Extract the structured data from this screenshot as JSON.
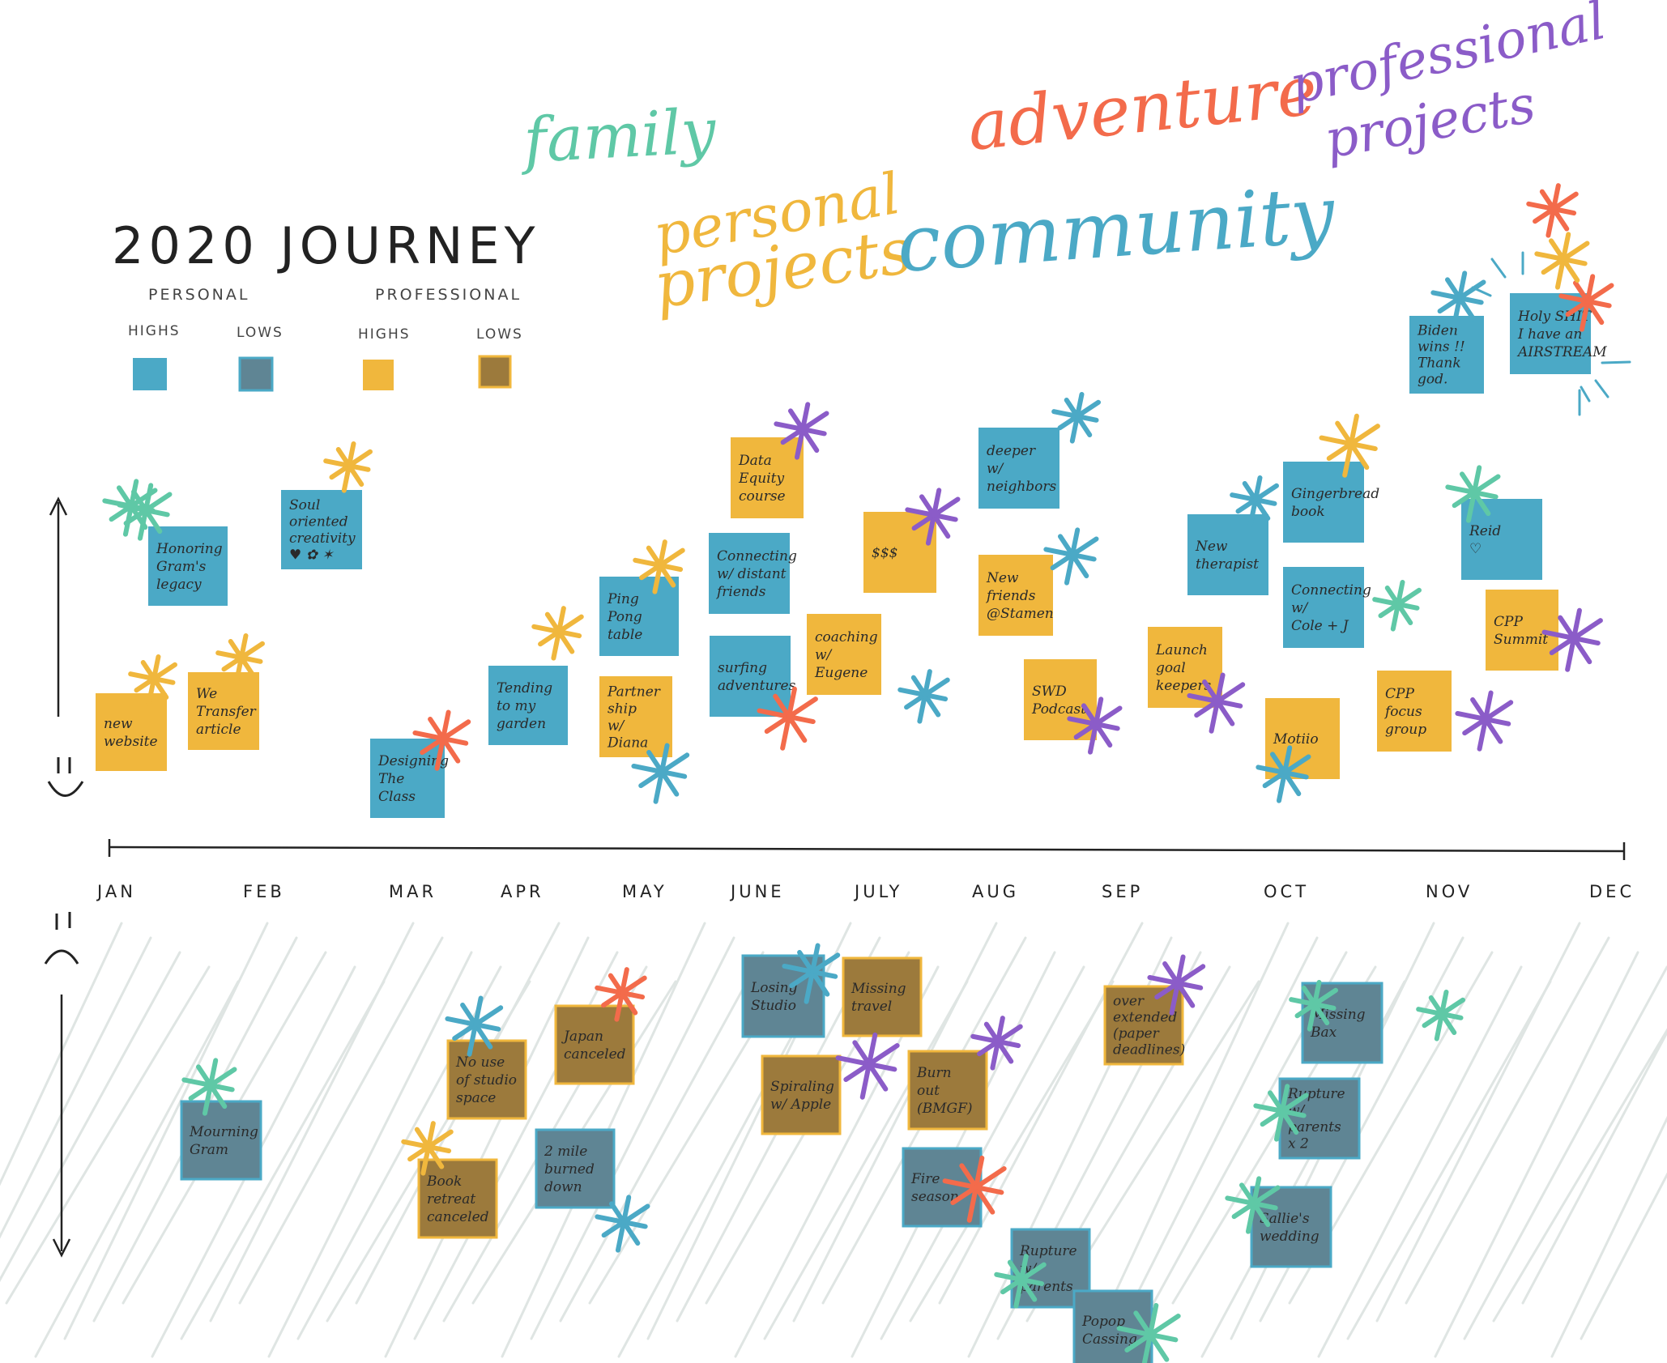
{
  "title": "2020 JOURNEY",
  "legend": {
    "personal_label": "PERSONAL",
    "professional_label": "PROFESSIONAL",
    "items": [
      {
        "label": "HIGHS",
        "color": "#4ba9c6"
      },
      {
        "label": "LOWS",
        "color": "#5f8594"
      },
      {
        "label": "HIGHS",
        "color": "#f0b73d"
      },
      {
        "label": "LOWS",
        "color": "#9c7a3c"
      }
    ]
  },
  "categories": [
    {
      "label": "family",
      "color": "#5fc8a6"
    },
    {
      "label": "personal projects",
      "line1": "personal",
      "line2": "projects",
      "color": "#f0b73d"
    },
    {
      "label": "adventure",
      "color": "#f36b4b"
    },
    {
      "label": "community",
      "color": "#4ba9c6"
    },
    {
      "label": "professional projects",
      "line1": "professional",
      "line2": "projects",
      "color": "#8b5cc8"
    }
  ],
  "faces": {
    "happy": "happy-face-icon",
    "sad": "sad-face-icon"
  },
  "months": [
    "JAN",
    "FEB",
    "MAR",
    "APR",
    "MAY",
    "JUNE",
    "JULY",
    "AUG",
    "SEP",
    "OCT",
    "NOV",
    "DEC"
  ],
  "colors": {
    "personal_high": "#4ba9c6",
    "personal_low": "#5f8594",
    "professional_high": "#f0b73d",
    "professional_low": "#9c7a3c",
    "family": "#5fc8a6",
    "adventure": "#f36b4b",
    "professional": "#8b5cc8",
    "hatch": "#dfe5e3"
  },
  "highs": [
    {
      "lines": [
        "new",
        "website"
      ],
      "type": "professional_high",
      "tag": "personal_projects"
    },
    {
      "lines": [
        "Honoring",
        "Gram's",
        "legacy"
      ],
      "type": "personal_high",
      "tag": "family"
    },
    {
      "lines": [
        "We",
        "Transfer",
        "article"
      ],
      "type": "professional_high",
      "tag": "personal_projects"
    },
    {
      "lines": [
        "Soul",
        "oriented",
        "creativity",
        "♥ ✿ ✶"
      ],
      "type": "personal_high",
      "tag": "personal_projects"
    },
    {
      "lines": [
        "Designing",
        "The",
        "Class"
      ],
      "type": "personal_high",
      "tag": "adventure"
    },
    {
      "lines": [
        "Tending",
        "to my",
        "garden"
      ],
      "type": "personal_high",
      "tag": "personal_projects"
    },
    {
      "lines": [
        "Ping",
        "Pong",
        "table"
      ],
      "type": "personal_high",
      "tag": "personal_projects"
    },
    {
      "lines": [
        "Partner",
        "ship",
        "w/",
        "Diana"
      ],
      "type": "professional_high",
      "tag": "community"
    },
    {
      "lines": [
        "Data",
        "Equity",
        "course"
      ],
      "type": "professional_high",
      "tag": "professional"
    },
    {
      "lines": [
        "Connecting",
        "w/ distant",
        "friends"
      ],
      "type": "personal_high",
      "tag": "family"
    },
    {
      "lines": [
        "surfing",
        "adventures"
      ],
      "type": "personal_high",
      "tag": "adventure"
    },
    {
      "lines": [
        "coaching",
        "w/",
        "Eugene"
      ],
      "type": "professional_high",
      "tag": "community"
    },
    {
      "lines": [
        "$$$"
      ],
      "type": "professional_high",
      "tag": "professional"
    },
    {
      "lines": [
        "deeper",
        "w/",
        "neighbors"
      ],
      "type": "personal_high",
      "tag": "community"
    },
    {
      "lines": [
        "New",
        "friends",
        "@Stamen"
      ],
      "type": "professional_high",
      "tag": "community"
    },
    {
      "lines": [
        "SWD",
        "Podcast"
      ],
      "type": "professional_high",
      "tag": "professional"
    },
    {
      "lines": [
        "Launch",
        "goal",
        "keepers"
      ],
      "type": "professional_high",
      "tag": "professional"
    },
    {
      "lines": [
        "New",
        "therapist"
      ],
      "type": "personal_high",
      "tag": "community"
    },
    {
      "lines": [
        "Gingerbread",
        "book"
      ],
      "type": "personal_high",
      "tag": "personal_projects"
    },
    {
      "lines": [
        "Connecting",
        "w/",
        "Cole + J"
      ],
      "type": "personal_high",
      "tag": "family"
    },
    {
      "lines": [
        "Motiio"
      ],
      "type": "professional_high",
      "tag": "community"
    },
    {
      "lines": [
        "Biden",
        "wins !!",
        "Thank",
        "god."
      ],
      "type": "personal_high",
      "tag": "community"
    },
    {
      "lines": [
        "Holy SHIT",
        "I have an",
        "AIRSTREAM"
      ],
      "type": "personal_high",
      "tag": "adventure"
    },
    {
      "lines": [
        "Reid",
        "♡"
      ],
      "type": "personal_high",
      "tag": "family"
    },
    {
      "lines": [
        "CPP",
        "focus",
        "group"
      ],
      "type": "professional_high",
      "tag": "professional"
    },
    {
      "lines": [
        "CPP",
        "Summit"
      ],
      "type": "professional_high",
      "tag": "professional"
    }
  ],
  "lows": [
    {
      "lines": [
        "Mourning",
        "Gram"
      ],
      "type": "personal_low",
      "tag": "family"
    },
    {
      "lines": [
        "Book",
        "retreat",
        "canceled"
      ],
      "type": "professional_low",
      "tag": "personal_projects"
    },
    {
      "lines": [
        "No use",
        "of studio",
        "space"
      ],
      "type": "professional_low",
      "tag": "community"
    },
    {
      "lines": [
        "Japan",
        "canceled"
      ],
      "type": "professional_low",
      "tag": "adventure"
    },
    {
      "lines": [
        "2 mile",
        "burned",
        "down"
      ],
      "type": "personal_low",
      "tag": "community"
    },
    {
      "lines": [
        "Losing",
        "Studio"
      ],
      "type": "personal_low",
      "tag": "community"
    },
    {
      "lines": [
        "Spiraling",
        "w/ Apple"
      ],
      "type": "professional_low",
      "tag": "professional"
    },
    {
      "lines": [
        "Missing",
        "travel"
      ],
      "type": "professional_low",
      "tag": "adventure"
    },
    {
      "lines": [
        "Burn",
        "out",
        "(BMGF)"
      ],
      "type": "professional_low",
      "tag": "professional"
    },
    {
      "lines": [
        "Fire",
        "season"
      ],
      "type": "personal_low",
      "tag": "adventure"
    },
    {
      "lines": [
        "Rupture",
        "w/",
        "parents"
      ],
      "type": "personal_low",
      "tag": "family"
    },
    {
      "lines": [
        "Popop",
        "Cassing"
      ],
      "type": "personal_low",
      "tag": "family"
    },
    {
      "lines": [
        "over",
        "extended",
        "(paper",
        "deadlines)"
      ],
      "type": "professional_low",
      "tag": "professional"
    },
    {
      "lines": [
        "Missing",
        "Bax"
      ],
      "type": "personal_low",
      "tag": "family"
    },
    {
      "lines": [
        "Rupture",
        "w/",
        "parents",
        "x 2"
      ],
      "type": "personal_low",
      "tag": "family"
    },
    {
      "lines": [
        "Sallie's",
        "wedding"
      ],
      "type": "personal_low",
      "tag": "family"
    }
  ]
}
